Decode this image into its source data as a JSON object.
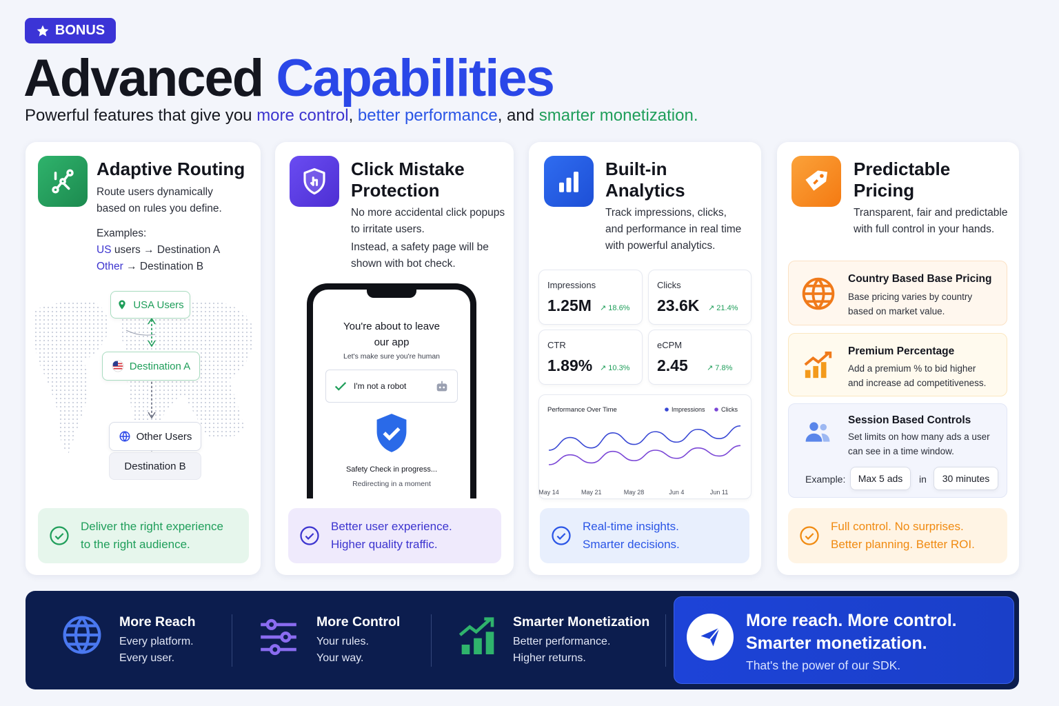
{
  "badge": {
    "label": "BONUS"
  },
  "header": {
    "title_part1": "Advanced",
    "title_part2": "Capabilities",
    "subtitle": {
      "s1": "Powerful features that give you ",
      "h1": "more control",
      "s2": ", ",
      "h2": "better performance",
      "s3": ", and ",
      "h3": "smarter monetization."
    }
  },
  "routing": {
    "title": "Adaptive Routing",
    "desc_line1": "Route users dynamically",
    "desc_line2": "based on rules you define.",
    "examples_label": "Examples:",
    "ex1_key": "US",
    "ex1_rest": "users → Destination A",
    "ex2_key": "Other",
    "ex2_rest": "→ Destination B",
    "node_usa": "USA Users",
    "node_dest_a": "Destination A",
    "node_other": "Other Users",
    "node_dest_b": "Destination B",
    "footer_line1": "Deliver the right experience",
    "footer_line2": "to the right audience."
  },
  "click": {
    "title_line1": "Click Mistake",
    "title_line2": "Protection",
    "desc_line1": "No more accidental click popups",
    "desc_line2": "to irritate users.",
    "desc_line3": "Instead, a safety page will be",
    "desc_line4": "shown with bot check.",
    "phone": {
      "heading_line1": "You're about to leave",
      "heading_line2": "our app",
      "sub": "Let's make sure you're human",
      "captcha": "I'm not a robot",
      "progress": "Safety Check in progress...",
      "redirect": "Redirecting in a moment"
    },
    "footer_line1": "Better user experience.",
    "footer_line2": "Higher quality traffic."
  },
  "analytics": {
    "title_line1": "Built-in",
    "title_line2": "Analytics",
    "desc_line1": "Track impressions, clicks,",
    "desc_line2": "and performance in real time",
    "desc_line3": "with powerful analytics.",
    "stats": [
      {
        "label": "Impressions",
        "value": "1.25M",
        "change": "↗ 18.6%"
      },
      {
        "label": "Clicks",
        "value": "23.6K",
        "change": "↗ 21.4%"
      },
      {
        "label": "CTR",
        "value": "1.89%",
        "change": "↗ 10.3%"
      },
      {
        "label": "eCPM",
        "value": "2.45",
        "change": "↗ 7.8%"
      }
    ],
    "footer_line1": "Real-time insights.",
    "footer_line2": "Smarter decisions."
  },
  "chart_data": {
    "type": "line",
    "title": "Performance Over Time",
    "x": [
      "May 14",
      "",
      "May 21",
      "",
      "May 28",
      "",
      "Jun 4",
      "",
      "Jun 11",
      ""
    ],
    "series": [
      {
        "name": "Impressions",
        "values": [
          50,
          72,
          54,
          80,
          60,
          82,
          64,
          86,
          70,
          92
        ],
        "color": "#3847d4"
      },
      {
        "name": "Clicks",
        "values": [
          25,
          42,
          28,
          48,
          32,
          50,
          36,
          54,
          40,
          58
        ],
        "color": "#7a46d6"
      }
    ],
    "ylim": [
      0,
      100
    ],
    "legend": "top-right",
    "grid": false
  },
  "pricing": {
    "title_line1": "Predictable",
    "title_line2": "Pricing",
    "desc_line1": "Transparent, fair and predictable",
    "desc_line2": "with full control in your hands.",
    "country": {
      "title": "Country Based Base Pricing",
      "line1": "Base pricing varies by country",
      "line2": "based on market value."
    },
    "premium": {
      "title": "Premium Percentage",
      "line1": "Add a premium % to bid higher",
      "line2": "and increase ad competitiveness."
    },
    "session": {
      "title": "Session Based Controls",
      "line1": "Set limits on how many ads a user",
      "line2": "can see in a time window.",
      "example_label": "Example:",
      "max_ads": "Max 5 ads",
      "in_word": "in",
      "window": "30 minutes"
    },
    "footer_line1": "Full control. No surprises.",
    "footer_line2": "Better planning. Better ROI."
  },
  "band": {
    "reach": {
      "title": "More Reach",
      "line1": "Every platform.",
      "line2": "Every user."
    },
    "control": {
      "title": "More Control",
      "line1": "Your rules.",
      "line2": "Your way."
    },
    "monetization": {
      "title": "Smarter Monetization",
      "line1": "Better performance.",
      "line2": "Higher returns."
    },
    "promo": {
      "line1": "More reach. More control.",
      "line2": "Smarter monetization.",
      "line3": "That's the power of our SDK."
    }
  },
  "colors": {
    "accent_blue": "#2a47e8",
    "accent_purple": "#3c34cf",
    "accent_green": "#1f9e5a",
    "accent_orange": "#f39a1c",
    "band_navy": "#0c1d4e"
  }
}
